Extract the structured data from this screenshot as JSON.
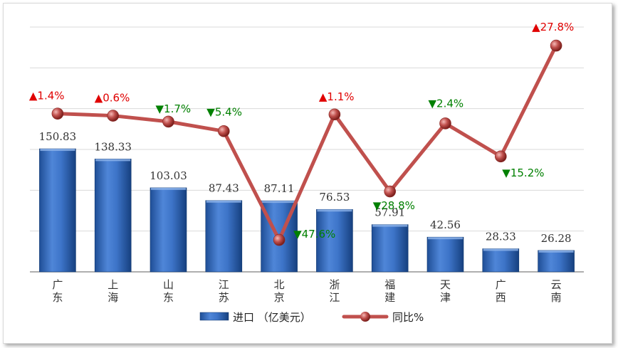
{
  "chart_data": {
    "type": "bar",
    "title": "",
    "categories": [
      "广东",
      "上海",
      "山东",
      "江苏",
      "北京",
      "浙江",
      "福建",
      "天津",
      "广西",
      "云南"
    ],
    "series": [
      {
        "name": "进口 （亿美元）",
        "type": "bar",
        "axis": "left",
        "values": [
          150.83,
          138.33,
          103.03,
          87.43,
          87.11,
          76.53,
          57.91,
          42.56,
          28.33,
          26.28
        ],
        "labels": [
          "150.83",
          "138.33",
          "103.03",
          "87.43",
          "87.11",
          "76.53",
          "57.91",
          "42.56",
          "28.33",
          "26.28"
        ],
        "color": "#3a72c4"
      },
      {
        "name": "同比%",
        "type": "line",
        "axis": "right",
        "values": [
          1.4,
          0.6,
          -1.7,
          -5.4,
          -47.6,
          1.1,
          -28.8,
          -2.4,
          -15.2,
          27.8
        ],
        "labels": [
          "▲1.4%",
          "▲0.6%",
          "▼1.7%",
          "▼5.4%",
          "▼47.6%",
          "▲1.1%",
          "▼28.8%",
          "▼2.4%",
          "▼15.2%",
          "▲27.8%"
        ],
        "color": "#c0504d"
      }
    ],
    "y_left": {
      "min": 0,
      "max": 300
    },
    "y_right": {
      "min": -60,
      "max": 35
    },
    "colors": {
      "up": "#e00000",
      "down": "#008000",
      "grid": "#d9d9d9",
      "axis": "#7f7f7f"
    },
    "grid": true,
    "legend": "bottom"
  }
}
